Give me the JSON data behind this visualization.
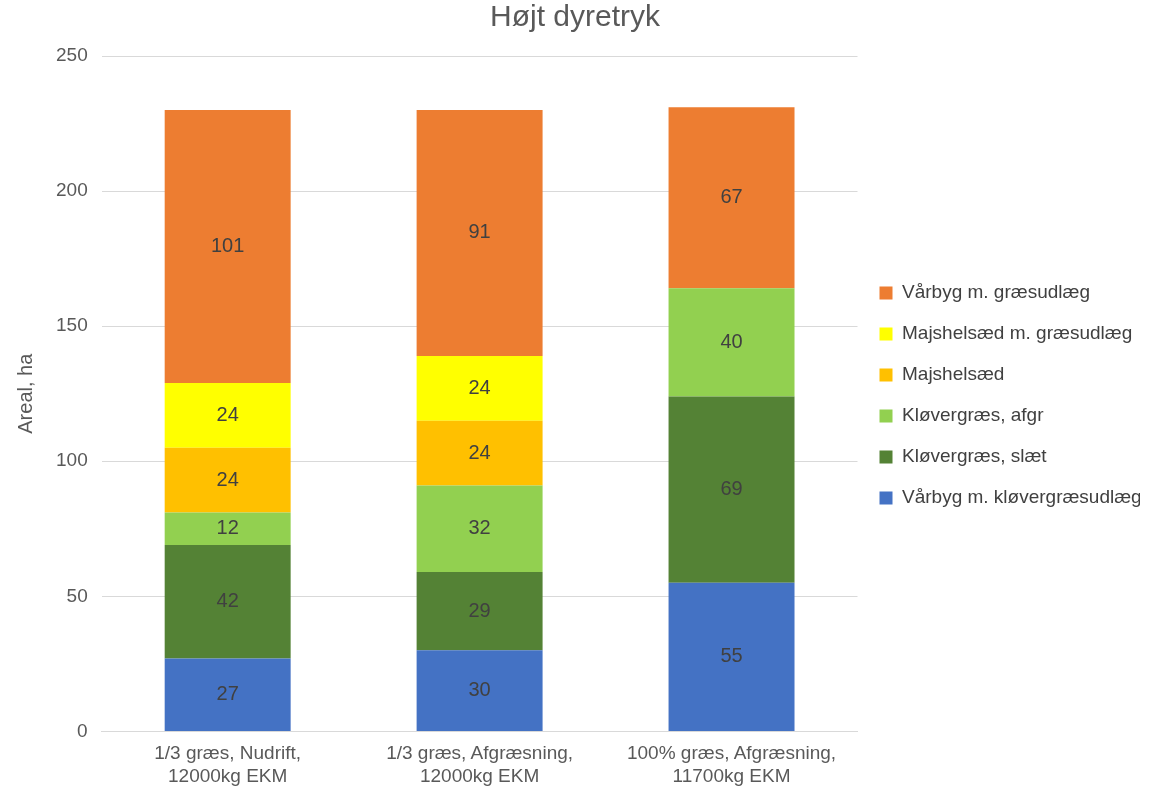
{
  "chart_data": {
    "type": "bar",
    "title": "Højt dyretryk",
    "ylabel": "Areal, ha",
    "stacked": true,
    "categories": [
      "1/3 græs, Nudrift, 12000kg EKM",
      "1/3 græs, Afgræsning, 12000kg EKM",
      "100% græs, Afgræsning, 11700kg EKM"
    ],
    "series": [
      {
        "name": "Vårbyg m. kløvergræsudlæg",
        "color": "#4472c4",
        "values": [
          27,
          30,
          55
        ]
      },
      {
        "name": "Kløvergræs, slæt",
        "color": "#548235",
        "values": [
          42,
          29,
          69
        ]
      },
      {
        "name": "Kløvergræs, afgr",
        "color": "#92d050",
        "values": [
          12,
          32,
          40
        ]
      },
      {
        "name": "Majshelsæd",
        "color": "#ffc000",
        "values": [
          24,
          24,
          null
        ]
      },
      {
        "name": "Majshelsæd m. græsudlæg",
        "color": "#ffff00",
        "values": [
          24,
          24,
          null
        ]
      },
      {
        "name": "Vårbyg m. græsudlæg",
        "color": "#ed7d31",
        "values": [
          101,
          91,
          67
        ]
      }
    ],
    "ylim": [
      0,
      250
    ],
    "yticks": [
      0,
      50,
      100,
      150,
      200,
      250
    ],
    "grid": "y",
    "legend": "right",
    "data_labels": true
  }
}
